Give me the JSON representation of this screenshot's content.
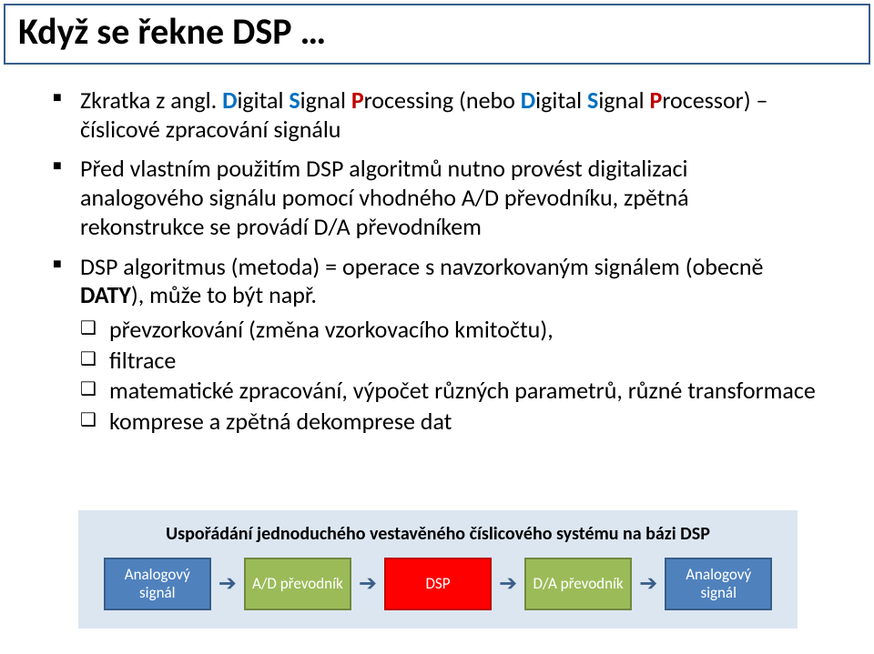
{
  "title": "Když se řekne DSP …",
  "bullets": {
    "b1_pre": "Zkratka z angl. ",
    "b1_d": "D",
    "b1_igital": "igital ",
    "b1_s": "S",
    "b1_ignal": "ignal ",
    "b1_p": "P",
    "b1_rocessing": "rocessing (nebo ",
    "b1_d2": "D",
    "b1_igital2": "igital ",
    "b1_s2": "S",
    "b1_ignal2": "ignal ",
    "b1_p2": "P",
    "b1_rocessor": "rocessor) – číslicové zpracování signálu",
    "b2": "Před vlastním použitím DSP algoritmů nutno provést digitalizaci analogového signálu pomocí vhodného A/D převodníku, zpětná rekonstrukce se provádí D/A převodníkem",
    "b3_pre": "DSP algoritmus (metoda) = operace s navzorkovaným signálem (obecně ",
    "b3_bold": "DATY",
    "b3_post": "), může to být např.",
    "inner1": "převzorkování (změna vzorkovacího kmitočtu),",
    "inner2": "filtrace",
    "inner3": "matematické zpracování, výpočet různých parametrů, různé transformace",
    "inner4": "komprese a zpětná dekomprese dat"
  },
  "diagram": {
    "caption": "Uspořádání jednoduchého vestavěného číslicového systému na bázi DSP",
    "boxes": {
      "b1": "Analogový signál",
      "b2": "A/D převodník",
      "b3": "DSP",
      "b4": "D/A převodník",
      "b5": "Analogový signál"
    },
    "colors": {
      "blue_fill": "#4f81bd",
      "blue_border": "#385d8a",
      "green_fill": "#9bbb59",
      "green_border": "#71893f",
      "red_fill": "#ff0000",
      "red_border": "#c00000",
      "panel_bg": "#dce6f1",
      "arrow": "#385d8a"
    }
  }
}
